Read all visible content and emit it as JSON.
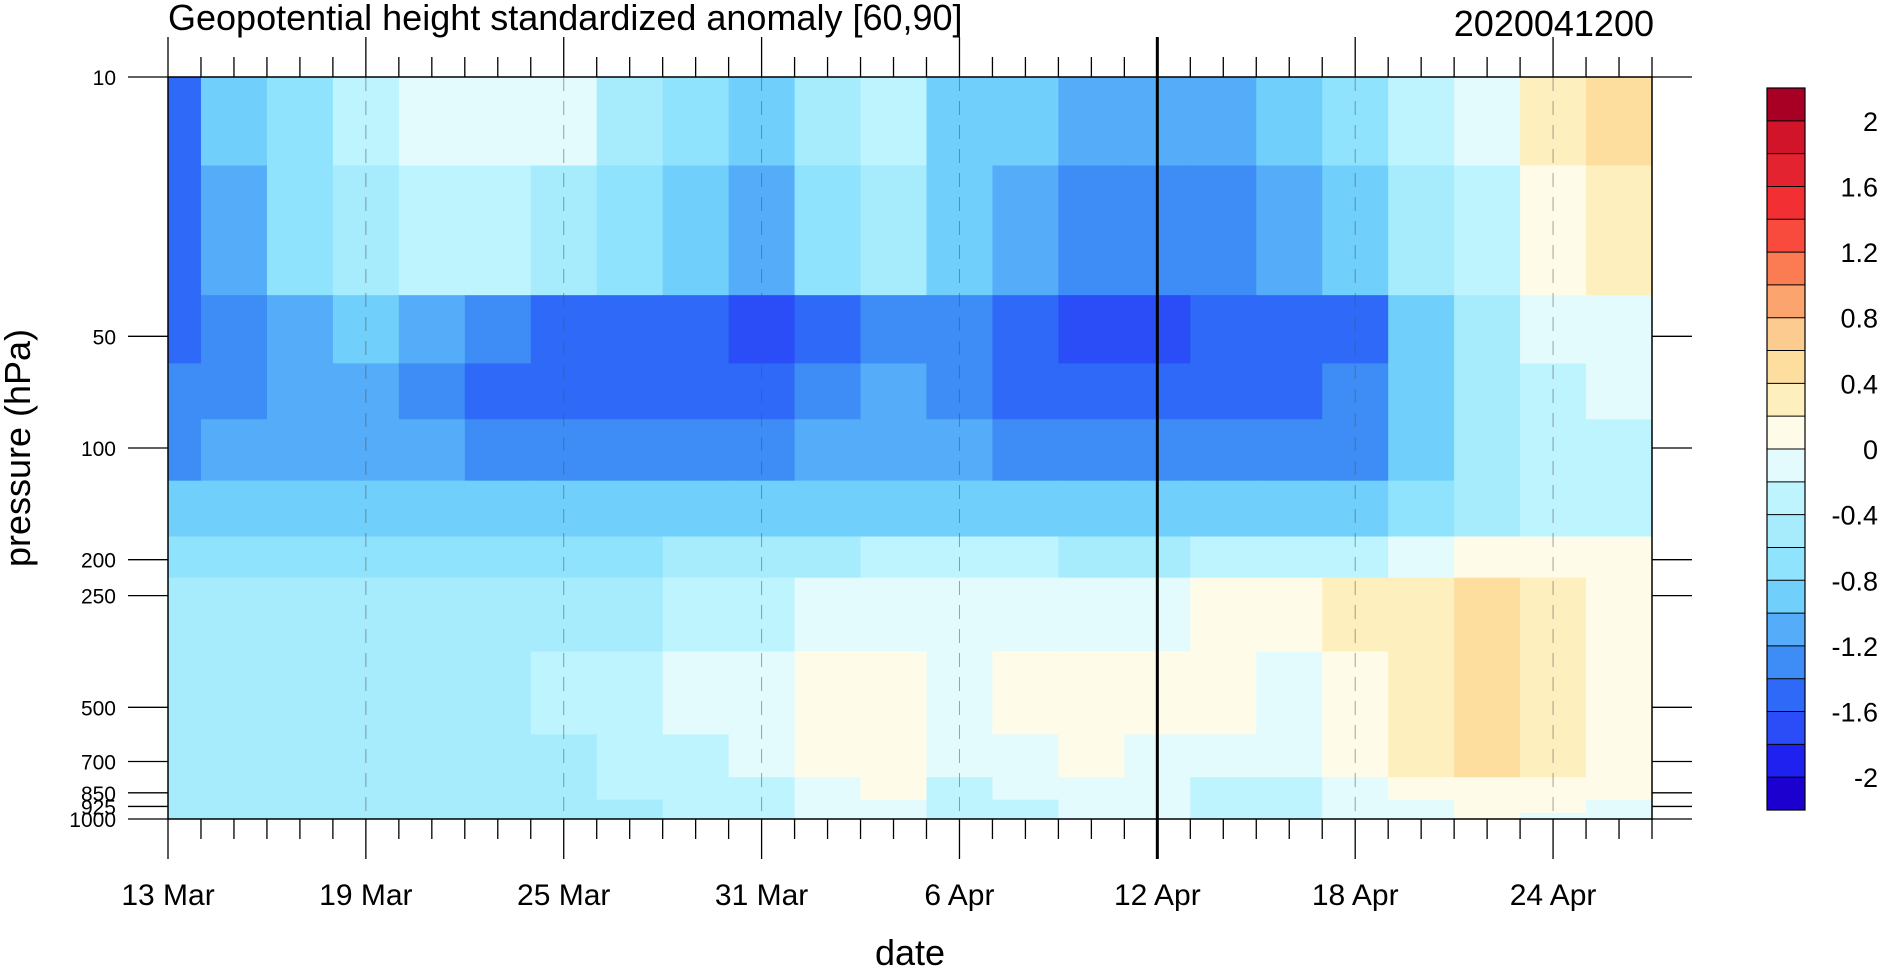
{
  "chart_data": {
    "type": "heatmap",
    "title": "Geopotential height standardized anomaly [60,90]",
    "title_right": "2020041200",
    "xlabel": "date",
    "ylabel": "pressure (hPa)",
    "x_tick_labels": [
      "13 Mar",
      "19 Mar",
      "25 Mar",
      "31 Mar",
      "6 Apr",
      "12 Apr",
      "18 Apr",
      "24 Apr"
    ],
    "y_tick_labels": [
      "10",
      "50",
      "100",
      "200",
      "250",
      "500",
      "700",
      "850",
      "925",
      "1000"
    ],
    "y_log_scale": true,
    "marked_date": "12 Apr",
    "colorbar": {
      "labels": [
        "2",
        "1.6",
        "1.2",
        "0.8",
        "0.4",
        "0",
        "-0.4",
        "-0.8",
        "-1.2",
        "-1.6",
        "-2"
      ],
      "levels": [
        -2.2,
        -2.0,
        -1.8,
        -1.6,
        -1.4,
        -1.2,
        -1.0,
        -0.8,
        -0.6,
        -0.4,
        -0.2,
        0.0,
        0.2,
        0.4,
        0.6,
        0.8,
        1.0,
        1.2,
        1.4,
        1.6,
        1.8,
        2.0,
        2.2
      ],
      "colors": [
        "#1B00CF",
        "#1F21F0",
        "#2A4DF7",
        "#2E6AF7",
        "#3E8CF6",
        "#55ACF8",
        "#70CFFB",
        "#90E3FC",
        "#A6ECFD",
        "#BDF4FE",
        "#E4FBFE",
        "#FEFCE9",
        "#FDF0BE",
        "#FDDE9F",
        "#FCCB8F",
        "#FBA46D",
        "#FB7C52",
        "#F94A3E",
        "#F22F33",
        "#E3232F",
        "#D2142B",
        "#A80025"
      ]
    },
    "dates": [
      "13 Mar",
      "15 Mar",
      "17 Mar",
      "19 Mar",
      "21 Mar",
      "23 Mar",
      "25 Mar",
      "27 Mar",
      "29 Mar",
      "31 Mar",
      "2 Apr",
      "4 Apr",
      "6 Apr",
      "8 Apr",
      "10 Apr",
      "12 Apr",
      "14 Apr",
      "16 Apr",
      "18 Apr",
      "20 Apr",
      "22 Apr",
      "24 Apr",
      "26 Apr"
    ],
    "levels_hPa": [
      10,
      30,
      50,
      70,
      100,
      150,
      200,
      250,
      500,
      700,
      850,
      925,
      1000
    ],
    "values": [
      [
        -1.5,
        -1.0,
        -0.7,
        -0.4,
        -0.2,
        -0.2,
        -0.2,
        -0.5,
        -0.8,
        -0.9,
        -0.5,
        -0.3,
        -0.9,
        -1.0,
        -1.1,
        -1.1,
        -1.1,
        -1.0,
        -0.7,
        -0.4,
        -0.1,
        0.3,
        0.5
      ],
      [
        -1.6,
        -1.2,
        -0.8,
        -0.6,
        -0.4,
        -0.4,
        -0.5,
        -0.8,
        -1.0,
        -1.1,
        -0.7,
        -0.5,
        -0.9,
        -1.2,
        -1.3,
        -1.3,
        -1.3,
        -1.2,
        -0.9,
        -0.6,
        -0.3,
        0.1,
        0.2
      ],
      [
        -1.5,
        -1.3,
        -1.1,
        -1.0,
        -1.2,
        -1.4,
        -1.5,
        -1.5,
        -1.6,
        -1.8,
        -1.5,
        -1.3,
        -1.4,
        -1.6,
        -1.8,
        -1.7,
        -1.6,
        -1.6,
        -1.5,
        -0.9,
        -0.5,
        -0.2,
        -0.1
      ],
      [
        -1.4,
        -1.3,
        -1.2,
        -1.2,
        -1.3,
        -1.5,
        -1.5,
        -1.5,
        -1.5,
        -1.6,
        -1.3,
        -1.1,
        -1.3,
        -1.5,
        -1.6,
        -1.5,
        -1.5,
        -1.5,
        -1.4,
        -0.9,
        -0.5,
        -0.3,
        -0.2
      ],
      [
        -1.3,
        -1.2,
        -1.2,
        -1.2,
        -1.2,
        -1.3,
        -1.3,
        -1.3,
        -1.3,
        -1.4,
        -1.2,
        -1.1,
        -1.2,
        -1.3,
        -1.4,
        -1.4,
        -1.3,
        -1.3,
        -1.3,
        -0.9,
        -0.6,
        -0.4,
        -0.3
      ],
      [
        -1.0,
        -0.9,
        -0.9,
        -0.9,
        -0.9,
        -0.9,
        -0.9,
        -0.9,
        -0.9,
        -1.0,
        -0.9,
        -0.9,
        -0.9,
        -0.9,
        -1.0,
        -1.0,
        -0.9,
        -0.9,
        -0.9,
        -0.7,
        -0.5,
        -0.4,
        -0.3
      ],
      [
        -0.7,
        -0.7,
        -0.7,
        -0.7,
        -0.7,
        -0.7,
        -0.7,
        -0.7,
        -0.6,
        -0.6,
        -0.5,
        -0.4,
        -0.4,
        -0.4,
        -0.5,
        -0.5,
        -0.4,
        -0.4,
        -0.3,
        -0.1,
        0.0,
        0.0,
        0.0
      ],
      [
        -0.6,
        -0.6,
        -0.6,
        -0.6,
        -0.6,
        -0.6,
        -0.6,
        -0.5,
        -0.4,
        -0.3,
        -0.2,
        -0.1,
        -0.1,
        -0.1,
        -0.1,
        -0.1,
        0.0,
        0.0,
        0.2,
        0.3,
        0.5,
        0.3,
        0.1
      ],
      [
        -0.6,
        -0.6,
        -0.6,
        -0.6,
        -0.6,
        -0.6,
        -0.4,
        -0.3,
        -0.2,
        -0.2,
        0.0,
        0.1,
        -0.1,
        0.1,
        0.1,
        0.1,
        0.1,
        -0.1,
        0.1,
        0.3,
        0.5,
        0.3,
        0.1
      ],
      [
        -0.6,
        -0.6,
        -0.6,
        -0.6,
        -0.6,
        -0.6,
        -0.5,
        -0.4,
        -0.3,
        -0.2,
        0.0,
        0.1,
        -0.1,
        -0.1,
        0.1,
        -0.1,
        -0.1,
        -0.2,
        0.1,
        0.2,
        0.4,
        0.2,
        0.1
      ],
      [
        -0.6,
        -0.6,
        -0.6,
        -0.6,
        -0.6,
        -0.6,
        -0.5,
        -0.4,
        -0.4,
        -0.3,
        -0.1,
        0.0,
        -0.3,
        -0.2,
        -0.1,
        -0.2,
        -0.3,
        -0.3,
        -0.1,
        0.0,
        0.1,
        0.1,
        0.0
      ],
      [
        -0.6,
        -0.6,
        -0.6,
        -0.6,
        -0.6,
        -0.6,
        -0.5,
        -0.5,
        -0.4,
        -0.3,
        -0.2,
        -0.1,
        -0.3,
        -0.3,
        -0.2,
        -0.2,
        -0.3,
        -0.3,
        -0.2,
        -0.1,
        0.0,
        0.0,
        -0.1
      ],
      [
        -0.6,
        -0.6,
        -0.6,
        -0.6,
        -0.6,
        -0.6,
        -0.6,
        -0.5,
        -0.4,
        -0.3,
        -0.2,
        -0.1,
        -0.3,
        -0.3,
        -0.2,
        -0.2,
        -0.3,
        -0.3,
        -0.2,
        -0.1,
        0.0,
        -0.1,
        -0.1
      ]
    ]
  }
}
